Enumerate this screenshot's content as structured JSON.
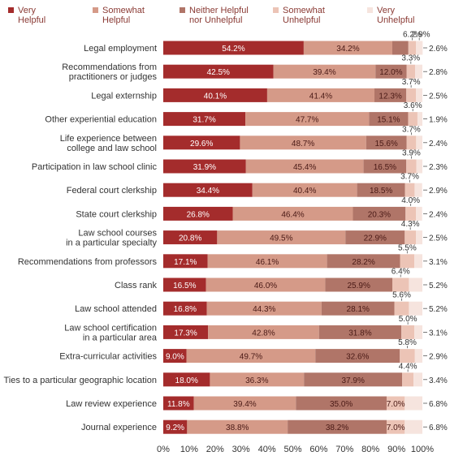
{
  "chart_data": {
    "type": "bar",
    "orientation": "horizontal",
    "stacked": true,
    "percent": true,
    "legend_position": "top",
    "grid": false,
    "xlim": [
      0,
      100
    ],
    "x_ticks": [
      "0%",
      "10%",
      "20%",
      "30%",
      "40%",
      "50%",
      "60%",
      "70%",
      "80%",
      "90%",
      "100%"
    ],
    "categories": [
      "Legal employment",
      "Recommendations from practitioners or judges",
      "Legal externship",
      "Other experiential education",
      "Life experience between college and law school",
      "Participation in law school clinic",
      "Federal court clerkship",
      "State court clerkship",
      "Law school courses in a particular specialty",
      "Recommendations from professors",
      "Class rank",
      "Law school attended",
      "Law school certification in a particular area",
      "Extra-curricular activities",
      "Ties to a particular geographic location",
      "Law review experience",
      "Journal experience"
    ],
    "category_lines": [
      [
        "Legal employment"
      ],
      [
        "Recommendations from",
        "practitioners or judges"
      ],
      [
        "Legal externship"
      ],
      [
        "Other experiential education"
      ],
      [
        "Life experience between",
        "college and law school"
      ],
      [
        "Participation in law school clinic"
      ],
      [
        "Federal court clerkship"
      ],
      [
        "State court clerkship"
      ],
      [
        "Law school courses",
        "in a particular specialty"
      ],
      [
        "Recommendations from professors"
      ],
      [
        "Class rank"
      ],
      [
        "Law school attended"
      ],
      [
        "Law school certification",
        "in a particular area"
      ],
      [
        "Extra-curricular activities"
      ],
      [
        "Ties to a particular geographic location"
      ],
      [
        "Law review experience"
      ],
      [
        "Journal experience"
      ]
    ],
    "series": [
      {
        "name": "Very Helpful",
        "legend_lines": [
          "Very",
          "Helpful"
        ],
        "color": "#a42c2c",
        "label_color": "#ffffff",
        "values": [
          54.2,
          42.5,
          40.1,
          31.7,
          29.6,
          31.9,
          34.4,
          26.8,
          20.8,
          17.1,
          16.5,
          16.8,
          17.3,
          9.0,
          18.0,
          11.8,
          9.2
        ]
      },
      {
        "name": "Somewhat Helpful",
        "legend_lines": [
          "Somewhat",
          "Helpful"
        ],
        "color": "#d59a88",
        "label_color": "#4a1a16",
        "values": [
          34.2,
          39.4,
          41.4,
          47.7,
          48.7,
          45.4,
          40.4,
          46.4,
          49.5,
          46.1,
          46.0,
          44.3,
          42.8,
          49.7,
          36.3,
          39.4,
          38.8
        ]
      },
      {
        "name": "Neither Helpful nor Unhelpful",
        "legend_lines": [
          "Neither Helpful",
          "nor Unhelpful"
        ],
        "color": "#b07568",
        "label_color": "#4a1a16",
        "values": [
          6.2,
          12.0,
          12.3,
          15.1,
          15.6,
          16.5,
          18.5,
          20.3,
          22.9,
          28.2,
          25.9,
          28.1,
          31.8,
          32.6,
          37.9,
          35.0,
          38.2
        ]
      },
      {
        "name": "Somewhat Unhelpful",
        "legend_lines": [
          "Somewhat",
          "Unhelpful"
        ],
        "color": "#ecc4b6",
        "label_color": "#4a1a16",
        "values": [
          2.9,
          3.3,
          3.7,
          3.6,
          3.7,
          3.9,
          3.7,
          4.0,
          4.3,
          5.5,
          6.4,
          5.6,
          5.0,
          5.8,
          4.4,
          7.0,
          7.0
        ]
      },
      {
        "name": "Very Unhelpful",
        "legend_lines": [
          "Very",
          "Unhelpful"
        ],
        "color": "#f6e4de",
        "label_color": "#333333",
        "values": [
          2.6,
          2.8,
          2.5,
          1.9,
          2.4,
          2.3,
          2.9,
          2.4,
          2.5,
          3.1,
          5.2,
          5.2,
          3.1,
          2.9,
          3.4,
          6.8,
          6.8
        ]
      }
    ],
    "labels": {
      "very_helpful": [
        "54.2%",
        "42.5%",
        "40.1%",
        "31.7%",
        "29.6%",
        "31.9%",
        "34.4%",
        "26.8%",
        "20.8%",
        "17.1%",
        "16.5%",
        "16.8%",
        "17.3%",
        "9.0%",
        "18.0%",
        "11.8%",
        "9.2%"
      ],
      "somewhat_helpful": [
        "34.2%",
        "39.4%",
        "41.4%",
        "47.7%",
        "48.7%",
        "45.4%",
        "40.4%",
        "46.4%",
        "49.5%",
        "46.1%",
        "46.0%",
        "44.3%",
        "42.8%",
        "49.7%",
        "36.3%",
        "39.4%",
        "38.8%"
      ],
      "neither": [
        "",
        "12.0%",
        "12.3%",
        "15.1%",
        "15.6%",
        "16.5%",
        "18.5%",
        "20.3%",
        "22.9%",
        "28.2%",
        "25.9%",
        "28.1%",
        "31.8%",
        "32.6%",
        "37.9%",
        "35.0%",
        "38.2%"
      ],
      "above": [
        "6.2%",
        "3.3%",
        "3.7%",
        "3.6%",
        "3.7%",
        "3.9%",
        "3.7%",
        "4.0%",
        "4.3%",
        "5.5%",
        "6.4%",
        "5.6%",
        "5.0%",
        "5.8%",
        "4.4%",
        "",
        ""
      ],
      "above_second": [
        "2.9%",
        "",
        "",
        "",
        "",
        "",
        "",
        "",
        "",
        "",
        "",
        "",
        "",
        "",
        "",
        "",
        ""
      ],
      "somewhat_unhelpful_inside": [
        "",
        "",
        "",
        "",
        "",
        "",
        "",
        "",
        "",
        "",
        "",
        "",
        "",
        "",
        "",
        "7.0%",
        "7.0%"
      ],
      "very_unhelpful_right": [
        "2.6%",
        "2.8%",
        "2.5%",
        "1.9%",
        "2.4%",
        "2.3%",
        "2.9%",
        "2.4%",
        "2.5%",
        "3.1%",
        "5.2%",
        "5.2%",
        "3.1%",
        "2.9%",
        "3.4%",
        "6.8%",
        "6.8%"
      ]
    }
  }
}
